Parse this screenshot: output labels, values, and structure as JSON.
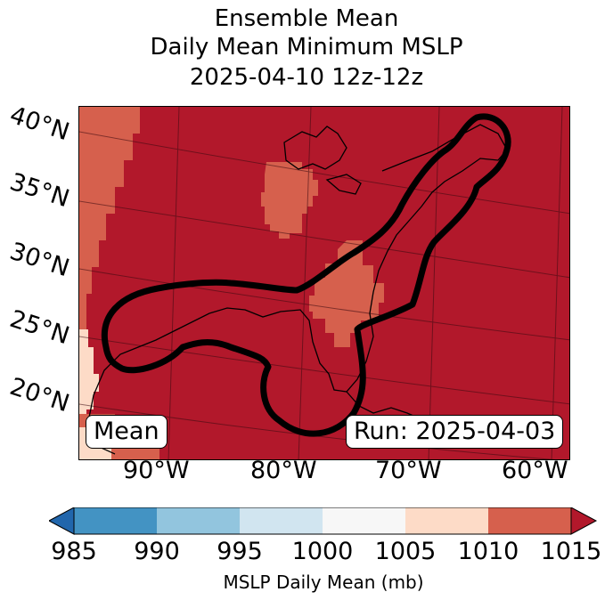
{
  "title": {
    "line1": "Ensemble Mean",
    "line2": "Daily Mean Minimum MSLP",
    "line3": "2025-04-10 12z-12z"
  },
  "lat_labels": [
    "40°N",
    "35°N",
    "30°N",
    "25°N",
    "20°N"
  ],
  "lon_labels": [
    "90°W",
    "80°W",
    "70°W",
    "60°W"
  ],
  "badges": {
    "left": "Mean",
    "right": "Run: 2025-04-03"
  },
  "colorbar": {
    "ticks": [
      "985",
      "990",
      "995",
      "1000",
      "1005",
      "1010",
      "1015"
    ],
    "label": "MSLP Daily Mean (mb)",
    "colors": [
      "#2166ac",
      "#4393c3",
      "#92c5de",
      "#d1e5f0",
      "#f7f7f7",
      "#fddbc7",
      "#d6604d",
      "#b2182b"
    ]
  },
  "map_colors": {
    "high": "#b2182b",
    "mid": "#d6604d",
    "low": "#fddbc7",
    "contour": "#000000"
  }
}
